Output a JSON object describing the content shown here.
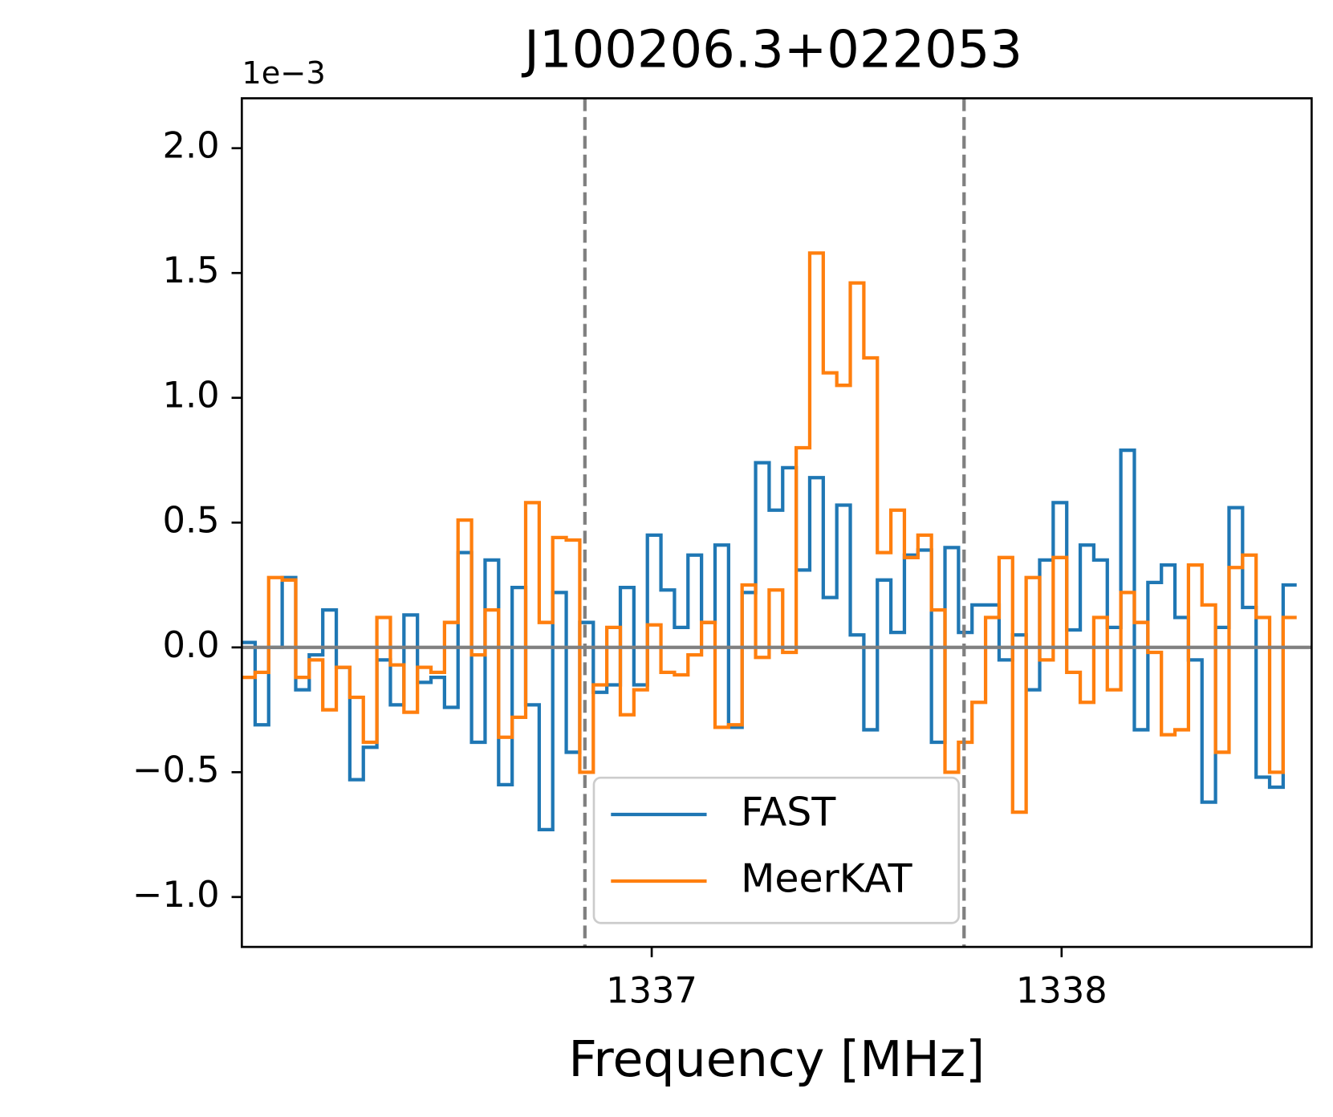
{
  "chart_data": {
    "type": "step",
    "title": "J100206.3+022053",
    "xlabel": "Frequency [MHz]",
    "offset_text": "1e−3",
    "xlim": [
      1336.0,
      1338.61
    ],
    "xticks": [
      1337,
      1338
    ],
    "ylim": [
      -1.2,
      2.2
    ],
    "yticks": [
      {
        "value": -1,
        "label": "−1.0"
      },
      {
        "value": -0.5,
        "label": "−0.5"
      },
      {
        "value": 0,
        "label": "0.0"
      },
      0.5,
      {
        "value": 1,
        "label": "1.0"
      },
      1.5,
      {
        "value": 2,
        "label": "2.0"
      }
    ],
    "vlines": [
      1336.837,
      1337.762
    ],
    "vline_color": "#808080",
    "hline": 0,
    "hline_color": "#808080",
    "legend": "lower center",
    "x": [
      1336.016,
      1336.049,
      1336.082,
      1336.115,
      1336.148,
      1336.181,
      1336.214,
      1336.247,
      1336.28,
      1336.313,
      1336.346,
      1336.379,
      1336.412,
      1336.445,
      1336.478,
      1336.511,
      1336.544,
      1336.577,
      1336.61,
      1336.643,
      1336.676,
      1336.709,
      1336.742,
      1336.775,
      1336.808,
      1336.841,
      1336.874,
      1336.907,
      1336.94,
      1336.973,
      1337.006,
      1337.039,
      1337.072,
      1337.105,
      1337.138,
      1337.171,
      1337.204,
      1337.237,
      1337.27,
      1337.303,
      1337.336,
      1337.369,
      1337.402,
      1337.435,
      1337.468,
      1337.501,
      1337.534,
      1337.567,
      1337.6,
      1337.633,
      1337.666,
      1337.699,
      1337.732,
      1337.765,
      1337.798,
      1337.831,
      1337.864,
      1337.897,
      1337.93,
      1337.963,
      1337.996,
      1338.029,
      1338.062,
      1338.095,
      1338.128,
      1338.161,
      1338.194,
      1338.227,
      1338.26,
      1338.293,
      1338.326,
      1338.359,
      1338.392,
      1338.425,
      1338.458,
      1338.491,
      1338.524,
      1338.557
    ],
    "series": [
      {
        "name": "FAST",
        "color": "#1f77b4",
        "values": [
          0.02,
          -0.31,
          0.0,
          0.28,
          -0.17,
          -0.03,
          0.15,
          -0.08,
          -0.53,
          -0.4,
          -0.05,
          -0.23,
          0.13,
          -0.14,
          -0.12,
          -0.24,
          0.38,
          -0.38,
          0.35,
          -0.55,
          0.24,
          -0.23,
          -0.73,
          0.22,
          -0.42,
          0.1,
          -0.18,
          -0.15,
          0.24,
          -0.15,
          0.45,
          0.23,
          0.08,
          0.37,
          0.1,
          0.41,
          -0.32,
          0.22,
          0.74,
          0.55,
          0.72,
          0.31,
          0.68,
          0.2,
          0.57,
          0.05,
          -0.33,
          0.27,
          0.06,
          0.37,
          0.39,
          -0.38,
          0.4,
          0.06,
          0.17,
          0.17,
          -0.05,
          0.05,
          -0.17,
          0.35,
          0.58,
          0.07,
          0.41,
          0.35,
          0.08,
          0.79,
          -0.33,
          0.26,
          0.33,
          0.12,
          -0.05,
          -0.62,
          0.08,
          0.56,
          0.16,
          -0.52,
          -0.56,
          0.25
        ]
      },
      {
        "name": "MeerKAT",
        "color": "#ff7f0e",
        "values": [
          -0.12,
          -0.1,
          0.28,
          0.27,
          -0.12,
          -0.05,
          -0.25,
          -0.08,
          -0.2,
          -0.38,
          0.12,
          -0.07,
          -0.26,
          -0.08,
          -0.1,
          0.1,
          0.51,
          -0.03,
          0.15,
          -0.36,
          -0.28,
          0.58,
          0.1,
          0.44,
          0.43,
          -0.5,
          -0.15,
          0.08,
          -0.27,
          -0.17,
          0.09,
          -0.1,
          -0.11,
          -0.03,
          0.1,
          -0.32,
          -0.31,
          0.25,
          -0.04,
          0.23,
          -0.02,
          0.8,
          1.58,
          1.1,
          1.05,
          1.46,
          1.16,
          0.38,
          0.55,
          0.36,
          0.45,
          0.15,
          -0.5,
          -0.38,
          -0.22,
          0.12,
          0.36,
          -0.66,
          0.28,
          -0.05,
          0.36,
          -0.1,
          -0.22,
          0.12,
          -0.17,
          0.22,
          0.1,
          -0.02,
          -0.35,
          -0.33,
          0.33,
          0.17,
          -0.42,
          0.32,
          0.37,
          0.12,
          -0.5,
          0.12
        ]
      }
    ]
  }
}
